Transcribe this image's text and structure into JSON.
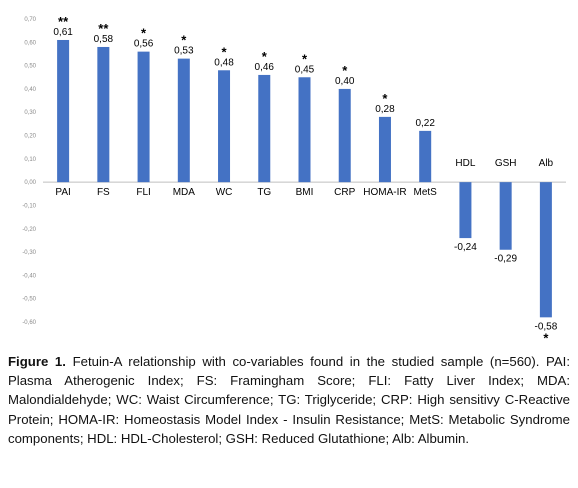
{
  "chart_data": {
    "type": "bar",
    "categories": [
      "PAI",
      "FS",
      "FLI",
      "MDA",
      "WC",
      "TG",
      "BMI",
      "CRP",
      "HOMA-IR",
      "MetS",
      "HDL",
      "GSH",
      "Alb"
    ],
    "values": [
      0.61,
      0.58,
      0.56,
      0.53,
      0.48,
      0.46,
      0.45,
      0.4,
      0.28,
      0.22,
      -0.24,
      -0.29,
      -0.58
    ],
    "value_labels": [
      "0,61",
      "0,58",
      "0,56",
      "0,53",
      "0,48",
      "0,46",
      "0,45",
      "0,40",
      "0,28",
      "0,22",
      "-0,24",
      "-0,29",
      "-0,58"
    ],
    "significance": [
      "**",
      "**",
      "*",
      "*",
      "*",
      "*",
      "*",
      "*",
      "*",
      "",
      "",
      "",
      "*"
    ],
    "ylim": [
      -0.6,
      0.7
    ],
    "ytick_labels": [
      "0,70",
      "0,60",
      "0,50",
      "0,40",
      "0,30",
      "0,20",
      "0,10",
      "0,00",
      "-0,10",
      "-0,20",
      "-0,30",
      "-0,40",
      "-0,50",
      "-0,60"
    ],
    "ytick_values": [
      0.7,
      0.6,
      0.5,
      0.4,
      0.3,
      0.2,
      0.1,
      0.0,
      -0.1,
      -0.2,
      -0.3,
      -0.4,
      -0.5,
      -0.6
    ],
    "bar_color": "#4472c4",
    "axis_color": "#bfbfbf",
    "grid": false
  },
  "caption": {
    "label": "Figure 1.",
    "text": "Fetuin-A relationship with co-variables found in the studied sample (n=560). PAI: Plasma Atherogenic Index; FS: Framingham Score; FLI: Fatty Liver Index; MDA: Malondialdehyde; WC: Waist Circumference; TG: Triglyceride; CRP: High sensitivy C-Reactive Protein; HOMA-IR: Homeostasis Model Index - Insulin Resistance; MetS: Metabolic Syndrome components; HDL: HDL-Cholesterol; GSH: Reduced Glutathione; Alb: Albumin."
  }
}
